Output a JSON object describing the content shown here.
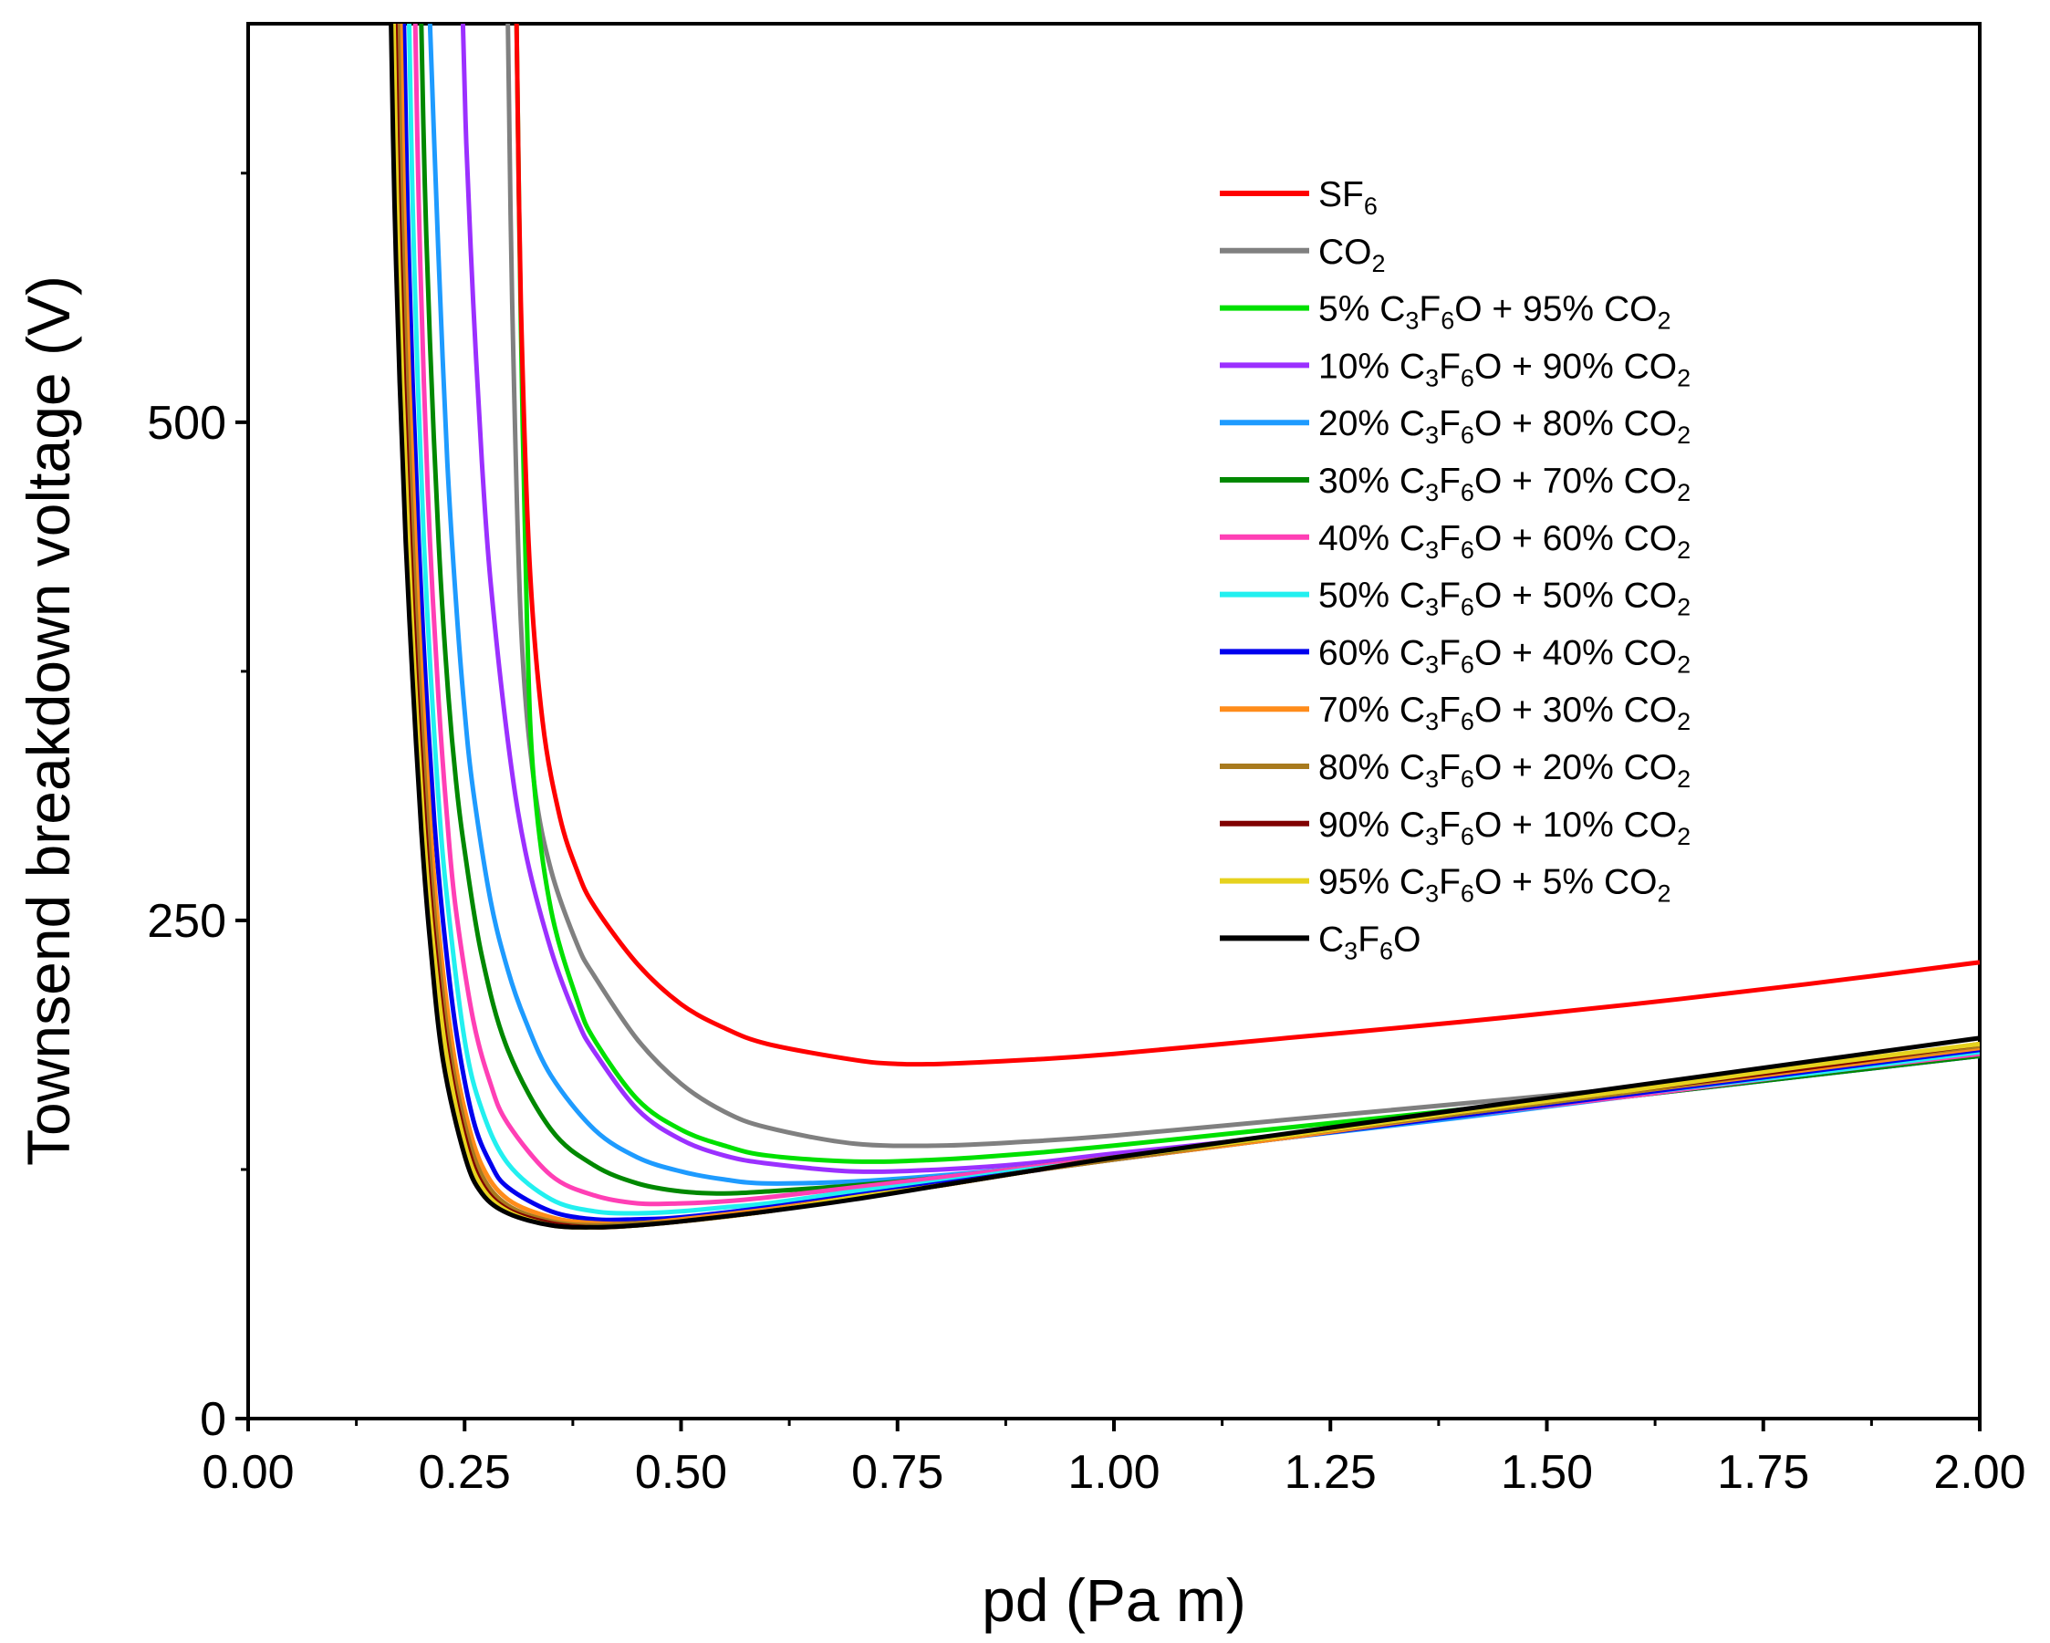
{
  "chart_data": {
    "type": "line",
    "title": "",
    "xlabel": "pd (Pa m)",
    "ylabel": "Townsend breakdown voltage (V)",
    "xlim": [
      0.0,
      2.0
    ],
    "ylim": [
      0,
      700
    ],
    "grid": false,
    "legend_position": "top-right",
    "x_ticks": [
      0.0,
      0.25,
      0.5,
      0.75,
      1.0,
      1.25,
      1.5,
      1.75,
      2.0
    ],
    "x_tick_labels": [
      "0.00",
      "0.25",
      "0.50",
      "0.75",
      "1.00",
      "1.25",
      "1.50",
      "1.75",
      "2.00"
    ],
    "y_ticks": [
      0,
      250,
      500
    ],
    "y_tick_labels": [
      "0",
      "250",
      "500"
    ],
    "series": [
      {
        "name": "SF6",
        "label": [
          {
            "t": "SF"
          },
          {
            "t": "6",
            "sub": true
          }
        ],
        "color": "#ff0000",
        "x": [
          0.31,
          0.315,
          0.325,
          0.34,
          0.36,
          0.38,
          0.4,
          0.45,
          0.5,
          0.55,
          0.6,
          0.7,
          0.75,
          0.8,
          0.9,
          1.0,
          1.2,
          1.4,
          1.6,
          1.8,
          2.0
        ],
        "values": [
          700,
          560,
          430,
          350,
          302,
          275,
          257,
          228,
          208,
          196,
          188,
          180,
          178,
          178,
          180,
          183,
          191,
          199,
          208,
          218,
          229
        ]
      },
      {
        "name": "CO2",
        "label": [
          {
            "t": "CO"
          },
          {
            "t": "2",
            "sub": true
          }
        ],
        "color": "#808080",
        "x": [
          0.3,
          0.305,
          0.315,
          0.33,
          0.35,
          0.38,
          0.4,
          0.45,
          0.5,
          0.55,
          0.6,
          0.7,
          0.8,
          0.9,
          1.0,
          1.2,
          1.4,
          1.6,
          1.8,
          2.0
        ],
        "values": [
          700,
          560,
          400,
          320,
          275,
          238,
          222,
          190,
          168,
          154,
          146,
          138,
          137,
          139,
          142,
          150,
          158,
          166,
          174,
          183
        ]
      },
      {
        "name": "5% C3F6O + 95% CO2",
        "label": [
          {
            "t": "5% C"
          },
          {
            "t": "3",
            "sub": true
          },
          {
            "t": "F"
          },
          {
            "t": "6",
            "sub": true
          },
          {
            "t": "O + 95% CO"
          },
          {
            "t": "2",
            "sub": true
          }
        ],
        "color": "#00e000",
        "x": [
          0.31,
          0.315,
          0.322,
          0.33,
          0.35,
          0.38,
          0.4,
          0.45,
          0.5,
          0.55,
          0.6,
          0.7,
          0.8,
          0.9,
          1.0,
          1.2,
          1.4,
          1.6,
          1.8,
          2.0
        ],
        "values": [
          700,
          550,
          400,
          320,
          255,
          210,
          190,
          160,
          145,
          137,
          132,
          129,
          130,
          133,
          137,
          146,
          155,
          164,
          173,
          182
        ]
      },
      {
        "name": "10% C3F6O + 90% CO2",
        "label": [
          {
            "t": "10% C"
          },
          {
            "t": "3",
            "sub": true
          },
          {
            "t": "F"
          },
          {
            "t": "6",
            "sub": true
          },
          {
            "t": "O + 90% CO"
          },
          {
            "t": "2",
            "sub": true
          }
        ],
        "color": "#9b30ff",
        "x": [
          0.248,
          0.252,
          0.26,
          0.27,
          0.28,
          0.3,
          0.32,
          0.35,
          0.38,
          0.4,
          0.45,
          0.5,
          0.55,
          0.6,
          0.7,
          0.8,
          0.9,
          1.0,
          1.2,
          1.4,
          1.6,
          1.8,
          2.0
        ],
        "values": [
          700,
          640,
          560,
          480,
          420,
          340,
          285,
          235,
          200,
          184,
          155,
          140,
          132,
          128,
          124,
          125,
          128,
          133,
          142,
          152,
          162,
          172,
          182
        ]
      },
      {
        "name": "20% C3F6O + 80% CO2",
        "label": [
          {
            "t": "20% C"
          },
          {
            "t": "3",
            "sub": true
          },
          {
            "t": "F"
          },
          {
            "t": "6",
            "sub": true
          },
          {
            "t": "O + 80% CO"
          },
          {
            "t": "2",
            "sub": true
          }
        ],
        "color": "#1e9bff",
        "x": [
          0.21,
          0.215,
          0.222,
          0.23,
          0.24,
          0.25,
          0.26,
          0.28,
          0.3,
          0.32,
          0.35,
          0.4,
          0.45,
          0.5,
          0.55,
          0.6,
          0.7,
          0.8,
          0.9,
          1.0,
          1.2,
          1.4,
          1.6,
          1.8,
          2.0
        ],
        "values": [
          700,
          640,
          560,
          480,
          410,
          355,
          315,
          260,
          225,
          200,
          172,
          145,
          131,
          124,
          120,
          118,
          119,
          122,
          126,
          131,
          141,
          151,
          162,
          172,
          182
        ]
      },
      {
        "name": "30% C3F6O + 70% CO2",
        "label": [
          {
            "t": "30% C"
          },
          {
            "t": "3",
            "sub": true
          },
          {
            "t": "F"
          },
          {
            "t": "6",
            "sub": true
          },
          {
            "t": "O + 70% CO"
          },
          {
            "t": "2",
            "sub": true
          }
        ],
        "color": "#008800",
        "x": [
          0.2,
          0.204,
          0.21,
          0.22,
          0.23,
          0.24,
          0.25,
          0.27,
          0.3,
          0.35,
          0.4,
          0.45,
          0.5,
          0.55,
          0.6,
          0.7,
          0.8,
          0.9,
          1.0,
          1.2,
          1.4,
          1.6,
          1.8,
          2.0
        ],
        "values": [
          700,
          620,
          540,
          440,
          370,
          320,
          285,
          232,
          185,
          145,
          127,
          118,
          114,
          113,
          114,
          117,
          121,
          126,
          131,
          141,
          152,
          162,
          172,
          182
        ]
      },
      {
        "name": "40% C3F6O + 60% CO2",
        "label": [
          {
            "t": "40% C"
          },
          {
            "t": "3",
            "sub": true
          },
          {
            "t": "F"
          },
          {
            "t": "6",
            "sub": true
          },
          {
            "t": "O + 60% CO"
          },
          {
            "t": "2",
            "sub": true
          }
        ],
        "color": "#ff3fb5",
        "x": [
          0.193,
          0.197,
          0.203,
          0.21,
          0.22,
          0.23,
          0.24,
          0.26,
          0.28,
          0.3,
          0.35,
          0.4,
          0.45,
          0.5,
          0.55,
          0.6,
          0.7,
          0.8,
          0.9,
          1.0,
          1.2,
          1.4,
          1.6,
          1.8,
          2.0
        ],
        "values": [
          700,
          610,
          520,
          440,
          360,
          300,
          255,
          200,
          168,
          148,
          122,
          112,
          108,
          108,
          109,
          111,
          116,
          121,
          126,
          131,
          141,
          152,
          162,
          173,
          183
        ]
      },
      {
        "name": "50% C3F6O + 50% CO2",
        "label": [
          {
            "t": "50% C"
          },
          {
            "t": "3",
            "sub": true
          },
          {
            "t": "F"
          },
          {
            "t": "6",
            "sub": true
          },
          {
            "t": "O + 50% CO"
          },
          {
            "t": "2",
            "sub": true
          }
        ],
        "color": "#22f0f0",
        "x": [
          0.186,
          0.19,
          0.196,
          0.203,
          0.21,
          0.22,
          0.23,
          0.25,
          0.27,
          0.3,
          0.35,
          0.4,
          0.45,
          0.5,
          0.55,
          0.6,
          0.7,
          0.8,
          0.9,
          1.0,
          1.2,
          1.4,
          1.6,
          1.8,
          2.0
        ],
        "values": [
          700,
          610,
          520,
          440,
          380,
          310,
          260,
          190,
          155,
          128,
          110,
          104,
          103,
          104,
          106,
          108,
          114,
          119,
          125,
          130,
          141,
          152,
          163,
          173,
          184
        ]
      },
      {
        "name": "60% C3F6O + 40% CO2",
        "label": [
          {
            "t": "60% C"
          },
          {
            "t": "3",
            "sub": true
          },
          {
            "t": "F"
          },
          {
            "t": "6",
            "sub": true
          },
          {
            "t": "O + 40% CO"
          },
          {
            "t": "2",
            "sub": true
          }
        ],
        "color": "#0000ee",
        "x": [
          0.18,
          0.184,
          0.19,
          0.197,
          0.205,
          0.215,
          0.225,
          0.24,
          0.26,
          0.28,
          0.3,
          0.35,
          0.4,
          0.45,
          0.5,
          0.6,
          0.7,
          0.8,
          0.9,
          1.0,
          1.2,
          1.4,
          1.6,
          1.8,
          2.0
        ],
        "values": [
          700,
          610,
          520,
          440,
          370,
          300,
          250,
          195,
          150,
          128,
          116,
          104,
          100,
          100,
          101,
          106,
          112,
          118,
          124,
          130,
          141,
          152,
          163,
          174,
          185
        ]
      },
      {
        "name": "70% C3F6O + 30% CO2",
        "label": [
          {
            "t": "70% C"
          },
          {
            "t": "3",
            "sub": true
          },
          {
            "t": "F"
          },
          {
            "t": "6",
            "sub": true
          },
          {
            "t": "O + 30% CO"
          },
          {
            "t": "2",
            "sub": true
          }
        ],
        "color": "#ff8c1a",
        "x": [
          0.176,
          0.18,
          0.186,
          0.193,
          0.2,
          0.21,
          0.22,
          0.235,
          0.25,
          0.27,
          0.3,
          0.35,
          0.4,
          0.45,
          0.5,
          0.6,
          0.7,
          0.8,
          0.9,
          1.0,
          1.2,
          1.4,
          1.6,
          1.8,
          2.0
        ],
        "values": [
          700,
          610,
          520,
          440,
          375,
          300,
          245,
          190,
          155,
          127,
          110,
          101,
          98,
          98,
          100,
          105,
          111,
          117,
          124,
          130,
          141,
          153,
          164,
          175,
          186
        ]
      },
      {
        "name": "80% C3F6O + 20% CO2",
        "label": [
          {
            "t": "80% C"
          },
          {
            "t": "3",
            "sub": true
          },
          {
            "t": "F"
          },
          {
            "t": "6",
            "sub": true
          },
          {
            "t": "O + 20% CO"
          },
          {
            "t": "2",
            "sub": true
          }
        ],
        "color": "#a87a1e",
        "x": [
          0.173,
          0.177,
          0.183,
          0.19,
          0.197,
          0.207,
          0.217,
          0.232,
          0.25,
          0.27,
          0.3,
          0.35,
          0.4,
          0.45,
          0.5,
          0.6,
          0.7,
          0.8,
          0.9,
          1.0,
          1.2,
          1.4,
          1.6,
          1.8,
          2.0
        ],
        "values": [
          700,
          610,
          520,
          440,
          375,
          300,
          245,
          188,
          148,
          122,
          107,
          99,
          97,
          98,
          99,
          104,
          111,
          117,
          124,
          130,
          142,
          153,
          164,
          176,
          187
        ]
      },
      {
        "name": "90% C3F6O + 10% CO2",
        "label": [
          {
            "t": "90% C"
          },
          {
            "t": "3",
            "sub": true
          },
          {
            "t": "F"
          },
          {
            "t": "6",
            "sub": true
          },
          {
            "t": "O + 10% CO"
          },
          {
            "t": "2",
            "sub": true
          }
        ],
        "color": "#800000",
        "x": [
          0.17,
          0.174,
          0.18,
          0.187,
          0.194,
          0.204,
          0.214,
          0.23,
          0.25,
          0.27,
          0.3,
          0.35,
          0.4,
          0.45,
          0.5,
          0.6,
          0.7,
          0.8,
          0.9,
          1.0,
          1.2,
          1.4,
          1.6,
          1.8,
          2.0
        ],
        "values": [
          700,
          610,
          520,
          440,
          375,
          300,
          245,
          185,
          142,
          118,
          105,
          98,
          96,
          97,
          99,
          104,
          111,
          117,
          124,
          131,
          142,
          154,
          165,
          176,
          188
        ]
      },
      {
        "name": "95% C3F6O + 5% CO2",
        "label": [
          {
            "t": "95% C"
          },
          {
            "t": "3",
            "sub": true
          },
          {
            "t": "F"
          },
          {
            "t": "6",
            "sub": true
          },
          {
            "t": "O + 5% CO"
          },
          {
            "t": "2",
            "sub": true
          }
        ],
        "color": "#e6d21e",
        "x": [
          0.168,
          0.172,
          0.178,
          0.185,
          0.192,
          0.202,
          0.212,
          0.228,
          0.25,
          0.27,
          0.3,
          0.35,
          0.4,
          0.45,
          0.5,
          0.6,
          0.7,
          0.8,
          0.9,
          1.0,
          1.2,
          1.4,
          1.6,
          1.8,
          2.0
        ],
        "values": [
          700,
          610,
          520,
          440,
          375,
          300,
          245,
          185,
          138,
          116,
          104,
          97,
          96,
          97,
          99,
          104,
          111,
          117,
          124,
          131,
          142,
          154,
          165,
          177,
          188
        ]
      },
      {
        "name": "C3F6O",
        "label": [
          {
            "t": "C"
          },
          {
            "t": "3",
            "sub": true
          },
          {
            "t": "F"
          },
          {
            "t": "6",
            "sub": true
          },
          {
            "t": "O"
          }
        ],
        "color": "#000000",
        "x": [
          0.165,
          0.169,
          0.175,
          0.182,
          0.19,
          0.2,
          0.21,
          0.225,
          0.25,
          0.27,
          0.3,
          0.35,
          0.4,
          0.45,
          0.5,
          0.6,
          0.7,
          0.8,
          0.9,
          1.0,
          1.2,
          1.4,
          1.6,
          1.8,
          2.0
        ],
        "values": [
          700,
          610,
          520,
          440,
          370,
          295,
          240,
          180,
          132,
          113,
          103,
          97,
          96,
          97,
          99,
          104,
          110,
          117,
          124,
          131,
          143,
          155,
          167,
          179,
          191
        ]
      }
    ]
  }
}
